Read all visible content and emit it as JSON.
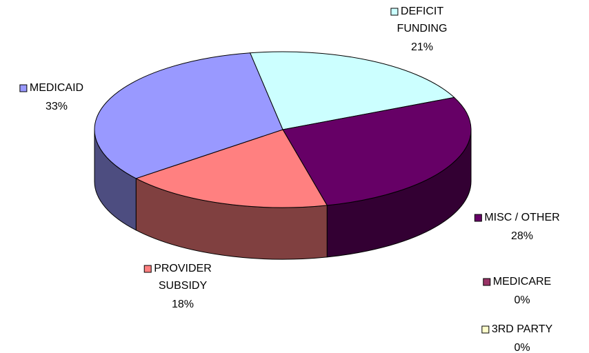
{
  "chart_data": {
    "type": "pie3d",
    "categories": [
      "DEFICIT FUNDING",
      "MISC / OTHER",
      "MEDICARE",
      "3RD PARTY",
      "PROVIDER SUBSIDY",
      "MEDICAID"
    ],
    "values": [
      21,
      28,
      0,
      0,
      18,
      33
    ],
    "value_labels": [
      "21%",
      "28%",
      "0%",
      "0%",
      "18%",
      "33%"
    ],
    "colors": [
      "#ccffff",
      "#660066",
      "#993366",
      "#ffffcc",
      "#ff8080",
      "#9999ff"
    ]
  }
}
